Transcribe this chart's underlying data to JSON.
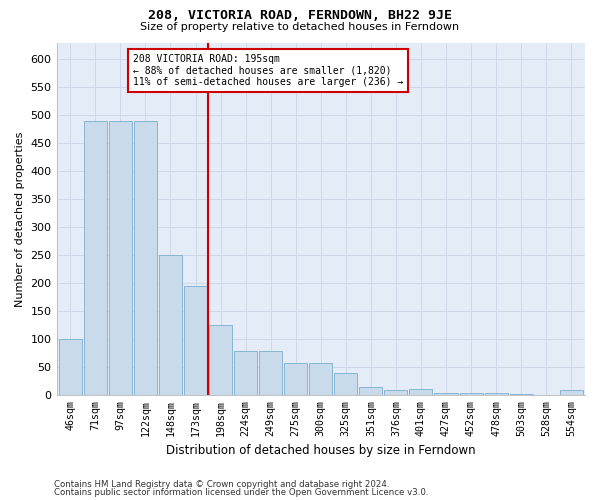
{
  "title": "208, VICTORIA ROAD, FERNDOWN, BH22 9JE",
  "subtitle": "Size of property relative to detached houses in Ferndown",
  "xlabel": "Distribution of detached houses by size in Ferndown",
  "ylabel": "Number of detached properties",
  "categories": [
    "46sqm",
    "71sqm",
    "97sqm",
    "122sqm",
    "148sqm",
    "173sqm",
    "198sqm",
    "224sqm",
    "249sqm",
    "275sqm",
    "300sqm",
    "325sqm",
    "351sqm",
    "376sqm",
    "401sqm",
    "427sqm",
    "452sqm",
    "478sqm",
    "503sqm",
    "528sqm",
    "554sqm"
  ],
  "values": [
    100,
    490,
    490,
    490,
    250,
    195,
    125,
    80,
    80,
    57,
    57,
    40,
    15,
    10,
    12,
    4,
    4,
    5,
    3,
    0,
    10
  ],
  "bar_color": "#c9daea",
  "bar_edge_color": "#7aaed0",
  "grid_color": "#cdd8e8",
  "background_color": "#e4ecf7",
  "marker_index": 6,
  "marker_color": "#cc0000",
  "annotation_text_line1": "208 VICTORIA ROAD: 195sqm",
  "annotation_text_line2": "← 88% of detached houses are smaller (1,820)",
  "annotation_text_line3": "11% of semi-detached houses are larger (236) →",
  "annotation_box_color": "#ffffff",
  "annotation_box_edge": "#cc0000",
  "footer_line1": "Contains HM Land Registry data © Crown copyright and database right 2024.",
  "footer_line2": "Contains public sector information licensed under the Open Government Licence v3.0.",
  "ylim": [
    0,
    630
  ],
  "yticks": [
    0,
    50,
    100,
    150,
    200,
    250,
    300,
    350,
    400,
    450,
    500,
    550,
    600
  ]
}
